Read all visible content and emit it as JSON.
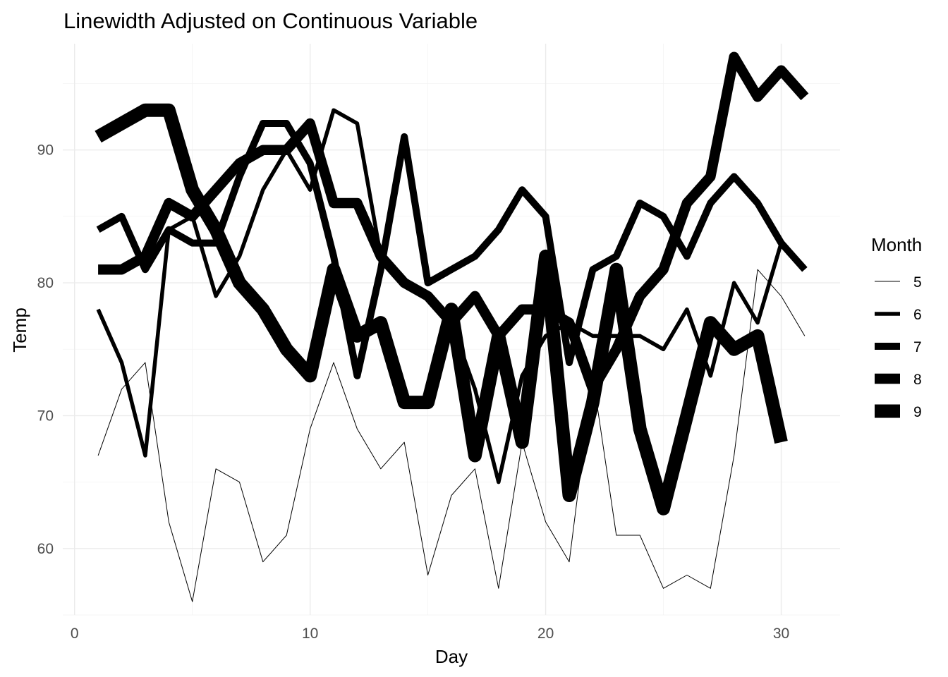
{
  "chart_data": {
    "type": "line",
    "title": "Linewidth Adjusted on Continuous Variable",
    "xlabel": "Day",
    "ylabel": "Temp",
    "xlim": [
      -0.5,
      32.5
    ],
    "ylim": [
      55,
      98
    ],
    "x_ticks": [
      0,
      10,
      20,
      30
    ],
    "y_ticks": [
      60,
      70,
      80,
      90
    ],
    "grid": true,
    "legend": {
      "title": "Month",
      "position": "right",
      "entries": [
        "5",
        "6",
        "7",
        "8",
        "9"
      ]
    },
    "line_color": "#000000",
    "series": [
      {
        "name": "5",
        "linewidth": 1,
        "x": [
          1,
          2,
          3,
          4,
          5,
          6,
          7,
          8,
          9,
          10,
          11,
          12,
          13,
          14,
          15,
          16,
          17,
          18,
          19,
          20,
          21,
          22,
          23,
          24,
          25,
          26,
          27,
          28,
          29,
          30,
          31
        ],
        "y": [
          67,
          72,
          74,
          62,
          56,
          66,
          65,
          59,
          61,
          69,
          74,
          69,
          66,
          68,
          58,
          64,
          66,
          57,
          68,
          62,
          59,
          73,
          61,
          61,
          57,
          58,
          57,
          67,
          81,
          79,
          76
        ]
      },
      {
        "name": "6",
        "linewidth": 2,
        "x": [
          1,
          2,
          3,
          4,
          5,
          6,
          7,
          8,
          9,
          10,
          11,
          12,
          13,
          14,
          15,
          16,
          17,
          18,
          19,
          20,
          21,
          22,
          23,
          24,
          25,
          26,
          27,
          28,
          29,
          30
        ],
        "y": [
          78,
          74,
          67,
          84,
          85,
          79,
          82,
          87,
          90,
          87,
          93,
          92,
          82,
          80,
          79,
          77,
          72,
          65,
          73,
          76,
          77,
          76,
          76,
          76,
          75,
          78,
          73,
          80,
          77,
          83
        ]
      },
      {
        "name": "7",
        "linewidth": 3,
        "x": [
          1,
          2,
          3,
          4,
          5,
          6,
          7,
          8,
          9,
          10,
          11,
          12,
          13,
          14,
          15,
          16,
          17,
          18,
          19,
          20,
          21,
          22,
          23,
          24,
          25,
          26,
          27,
          28,
          29,
          30,
          31
        ],
        "y": [
          84,
          85,
          81,
          84,
          83,
          83,
          88,
          92,
          92,
          89,
          82,
          73,
          81,
          91,
          80,
          81,
          82,
          84,
          87,
          85,
          74,
          81,
          82,
          86,
          85,
          82,
          86,
          88,
          86,
          83,
          81
        ]
      },
      {
        "name": "8",
        "linewidth": 4,
        "x": [
          1,
          2,
          3,
          4,
          5,
          6,
          7,
          8,
          9,
          10,
          11,
          12,
          13,
          14,
          15,
          16,
          17,
          18,
          19,
          20,
          21,
          22,
          23,
          24,
          25,
          26,
          27,
          28,
          29,
          30,
          31
        ],
        "y": [
          81,
          81,
          82,
          86,
          85,
          87,
          89,
          90,
          90,
          92,
          86,
          86,
          82,
          80,
          79,
          77,
          79,
          76,
          78,
          78,
          77,
          72,
          75,
          79,
          81,
          86,
          88,
          97,
          94,
          96,
          94
        ]
      },
      {
        "name": "9",
        "linewidth": 5,
        "x": [
          1,
          2,
          3,
          4,
          5,
          6,
          7,
          8,
          9,
          10,
          11,
          12,
          13,
          14,
          15,
          16,
          17,
          18,
          19,
          20,
          21,
          22,
          23,
          24,
          25,
          26,
          27,
          28,
          29,
          30
        ],
        "y": [
          91,
          92,
          93,
          93,
          87,
          84,
          80,
          78,
          75,
          73,
          81,
          76,
          77,
          71,
          71,
          78,
          67,
          76,
          68,
          82,
          64,
          71,
          81,
          69,
          63,
          70,
          77,
          75,
          76,
          68
        ]
      }
    ]
  }
}
